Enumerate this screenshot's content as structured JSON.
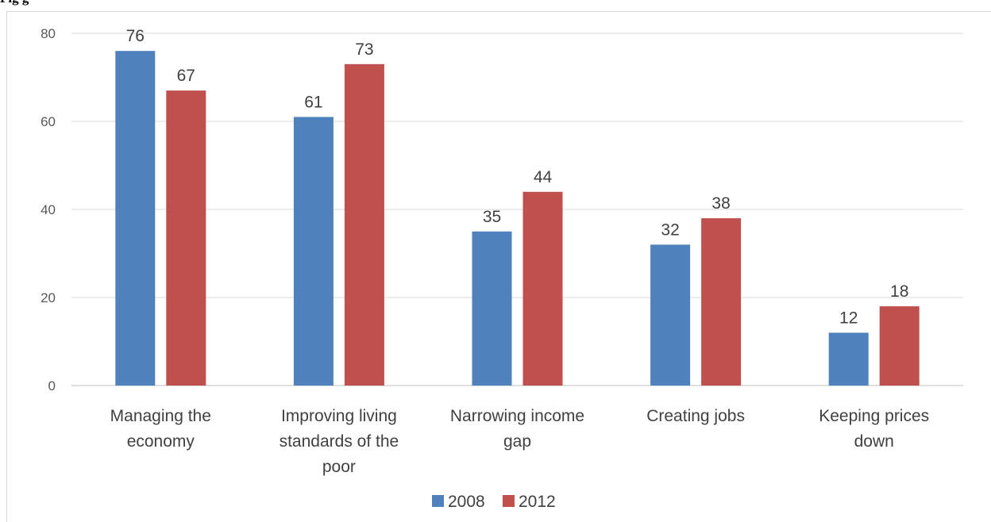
{
  "heading_partial": "Fig                                          g",
  "chart_data": {
    "type": "bar",
    "title": "",
    "xlabel": "",
    "ylabel": "",
    "ylim": [
      0,
      80
    ],
    "yticks": [
      0,
      20,
      40,
      60,
      80
    ],
    "grid": true,
    "legend_position": "bottom",
    "categories": [
      [
        "Managing the",
        "economy"
      ],
      [
        "Improving living",
        "standards of the",
        "poor"
      ],
      [
        "Narrowing income",
        "gap"
      ],
      [
        "Creating jobs"
      ],
      [
        "Keeping prices",
        "down"
      ]
    ],
    "series": [
      {
        "name": "2008",
        "color": "#4f81bd",
        "values": [
          76,
          61,
          35,
          32,
          12
        ]
      },
      {
        "name": "2012",
        "color": "#c0504d",
        "values": [
          67,
          73,
          44,
          38,
          18
        ]
      }
    ]
  }
}
